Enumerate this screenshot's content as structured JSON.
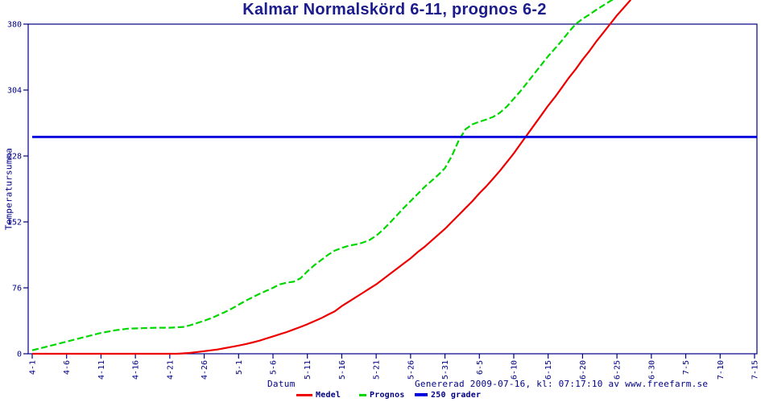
{
  "title": "Kalmar Normalskörd 6-11, prognos 6-2",
  "footer": {
    "generated_text": "Genererad 2009-07-16, kl: 07:17:10 av www.freefarm.se"
  },
  "colors": {
    "background": "#ffffff",
    "axis_ink": "#000084",
    "title_ink": "#1b1b8c",
    "medel": "#ee0000",
    "prognos": "#00d800",
    "threshold": "#0000dd"
  },
  "chart_data": {
    "type": "line",
    "title": "Kalmar Normalskörd 6-11, prognos 6-2",
    "xlabel": "Datum",
    "ylabel": "Temperatursumma",
    "x_unit": "days since 4-1",
    "ylim": [
      0,
      380
    ],
    "yticks": [
      0,
      76,
      152,
      228,
      304,
      380
    ],
    "grid": false,
    "legend_position": "bottom-center",
    "xticks": [
      {
        "label": "4-1",
        "day": 0
      },
      {
        "label": "4-6",
        "day": 5
      },
      {
        "label": "4-11",
        "day": 10
      },
      {
        "label": "4-16",
        "day": 15
      },
      {
        "label": "4-21",
        "day": 20
      },
      {
        "label": "4-26",
        "day": 25
      },
      {
        "label": "5-1",
        "day": 30
      },
      {
        "label": "5-6",
        "day": 35
      },
      {
        "label": "5-11",
        "day": 40
      },
      {
        "label": "5-16",
        "day": 45
      },
      {
        "label": "5-21",
        "day": 50
      },
      {
        "label": "5-26",
        "day": 55
      },
      {
        "label": "5-31",
        "day": 60
      },
      {
        "label": "6-5",
        "day": 65
      },
      {
        "label": "6-10",
        "day": 70
      },
      {
        "label": "6-15",
        "day": 75
      },
      {
        "label": "6-20",
        "day": 80
      },
      {
        "label": "6-25",
        "day": 85
      },
      {
        "label": "6-30",
        "day": 90
      },
      {
        "label": "7-5",
        "day": 95
      },
      {
        "label": "7-10",
        "day": 100
      },
      {
        "label": "7-15",
        "day": 105
      }
    ],
    "series": [
      {
        "id": "medel",
        "name": "Medel",
        "color": "#ee0000",
        "style": "solid",
        "width": 2.2,
        "points": [
          [
            0,
            0
          ],
          [
            5,
            0
          ],
          [
            10,
            0
          ],
          [
            15,
            0
          ],
          [
            20,
            0
          ],
          [
            21,
            0
          ],
          [
            22,
            0.5
          ],
          [
            23,
            1
          ],
          [
            24,
            2
          ],
          [
            25,
            3
          ],
          [
            26,
            4
          ],
          [
            27,
            5
          ],
          [
            28,
            6.5
          ],
          [
            29,
            8
          ],
          [
            30,
            9.5
          ],
          [
            31,
            11
          ],
          [
            32,
            13
          ],
          [
            33,
            15
          ],
          [
            34,
            17.5
          ],
          [
            35,
            20
          ],
          [
            36,
            22.5
          ],
          [
            37,
            25
          ],
          [
            38,
            28
          ],
          [
            39,
            31
          ],
          [
            40,
            34
          ],
          [
            41,
            37.5
          ],
          [
            42,
            41
          ],
          [
            43,
            45
          ],
          [
            44,
            49
          ],
          [
            45,
            55
          ],
          [
            46,
            60
          ],
          [
            47,
            65
          ],
          [
            48,
            70
          ],
          [
            49,
            75
          ],
          [
            50,
            80
          ],
          [
            51,
            86
          ],
          [
            52,
            92
          ],
          [
            53,
            98
          ],
          [
            54,
            104
          ],
          [
            55,
            110
          ],
          [
            56,
            117
          ],
          [
            57,
            123
          ],
          [
            58,
            130
          ],
          [
            59,
            137
          ],
          [
            60,
            144
          ],
          [
            61,
            152
          ],
          [
            62,
            160
          ],
          [
            63,
            168
          ],
          [
            64,
            176
          ],
          [
            65,
            185
          ],
          [
            66,
            193
          ],
          [
            67,
            202
          ],
          [
            68,
            211
          ],
          [
            69,
            221
          ],
          [
            70,
            231
          ],
          [
            71,
            242
          ],
          [
            72,
            253
          ],
          [
            73,
            264
          ],
          [
            74,
            275
          ],
          [
            75,
            286
          ],
          [
            76,
            296
          ],
          [
            77,
            307
          ],
          [
            78,
            318
          ],
          [
            79,
            328
          ],
          [
            80,
            339
          ],
          [
            81,
            349
          ],
          [
            82,
            360
          ],
          [
            83,
            370
          ],
          [
            84,
            380
          ],
          [
            85,
            390
          ],
          [
            86,
            399
          ],
          [
            87,
            408
          ]
        ]
      },
      {
        "id": "prognos",
        "name": "Prognos",
        "color": "#00d800",
        "style": "dashed",
        "dash": "8 3.5",
        "width": 2.2,
        "points": [
          [
            0,
            4
          ],
          [
            2,
            8
          ],
          [
            4,
            12
          ],
          [
            6,
            16
          ],
          [
            8,
            20
          ],
          [
            10,
            24
          ],
          [
            12,
            27
          ],
          [
            13,
            28
          ],
          [
            14,
            29
          ],
          [
            16,
            29.5
          ],
          [
            18,
            30
          ],
          [
            20,
            30
          ],
          [
            22,
            31
          ],
          [
            23,
            33
          ],
          [
            24,
            35.5
          ],
          [
            25,
            38
          ],
          [
            26,
            41
          ],
          [
            27,
            44.5
          ],
          [
            28,
            48
          ],
          [
            29,
            52
          ],
          [
            30,
            56.5
          ],
          [
            31,
            61
          ],
          [
            32,
            65
          ],
          [
            33,
            69
          ],
          [
            34,
            72.5
          ],
          [
            35,
            76
          ],
          [
            36,
            80
          ],
          [
            37,
            82
          ],
          [
            38,
            83
          ],
          [
            39,
            87
          ],
          [
            40,
            95
          ],
          [
            41,
            102
          ],
          [
            42,
            108
          ],
          [
            43,
            114
          ],
          [
            44,
            119
          ],
          [
            45,
            122
          ],
          [
            46,
            124.5
          ],
          [
            47,
            126
          ],
          [
            48,
            128
          ],
          [
            49,
            131
          ],
          [
            50,
            136
          ],
          [
            51,
            143
          ],
          [
            52,
            151
          ],
          [
            53,
            159.5
          ],
          [
            54,
            168
          ],
          [
            55,
            176
          ],
          [
            56,
            184
          ],
          [
            57,
            192
          ],
          [
            58,
            199
          ],
          [
            59,
            206
          ],
          [
            60,
            214
          ],
          [
            61,
            228
          ],
          [
            62,
            246
          ],
          [
            63,
            259
          ],
          [
            64,
            264.5
          ],
          [
            65,
            267.5
          ],
          [
            66,
            270
          ],
          [
            67,
            273
          ],
          [
            68,
            278
          ],
          [
            69,
            285
          ],
          [
            70,
            294
          ],
          [
            71,
            303
          ],
          [
            72,
            313
          ],
          [
            73,
            323
          ],
          [
            74,
            333
          ],
          [
            75,
            343
          ],
          [
            76,
            352
          ],
          [
            77,
            361
          ],
          [
            78,
            371
          ],
          [
            79,
            380
          ],
          [
            80,
            386
          ],
          [
            81,
            391
          ],
          [
            82,
            396.5
          ],
          [
            83,
            401.5
          ],
          [
            84,
            406.5
          ],
          [
            85,
            411
          ]
        ]
      },
      {
        "id": "threshold",
        "name": "250 grader",
        "color": "#0000dd",
        "style": "solid",
        "width": 2.8,
        "points": [
          [
            0,
            250
          ],
          [
            105.4,
            250
          ]
        ]
      }
    ]
  }
}
